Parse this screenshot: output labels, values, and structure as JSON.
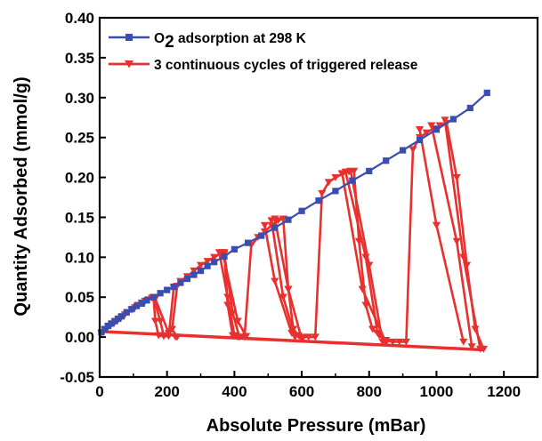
{
  "chart_data": {
    "type": "line",
    "xlabel": "Absolute Pressure (mBar)",
    "ylabel": "Quantity Adsorbed (mmol/g)",
    "xlim": [
      0,
      1300
    ],
    "ylim": [
      -0.05,
      0.4
    ],
    "x_ticks": [
      "0",
      "200",
      "400",
      "600",
      "800",
      "1000",
      "1200"
    ],
    "y_ticks": [
      "-0.05",
      "0.00",
      "0.05",
      "0.10",
      "0.15",
      "0.20",
      "0.25",
      "0.30",
      "0.35",
      "0.40"
    ],
    "grid": false,
    "legend_position": "top-left",
    "series": [
      {
        "name": "O2 adsorption at 298 K",
        "legend_main": "O",
        "legend_sub": "2",
        "legend_rest": " adsorption at 298 K",
        "color": "#3a4db0",
        "marker": "square",
        "x": [
          5,
          15,
          25,
          35,
          45,
          55,
          65,
          80,
          95,
          110,
          125,
          140,
          160,
          180,
          200,
          220,
          240,
          260,
          280,
          300,
          320,
          340,
          370,
          400,
          440,
          480,
          520,
          560,
          600,
          650,
          700,
          750,
          800,
          850,
          900,
          950,
          1000,
          1050,
          1100,
          1150
        ],
        "y": [
          0.006,
          0.01,
          0.014,
          0.017,
          0.02,
          0.023,
          0.026,
          0.031,
          0.035,
          0.039,
          0.042,
          0.046,
          0.05,
          0.055,
          0.059,
          0.063,
          0.068,
          0.073,
          0.078,
          0.083,
          0.089,
          0.094,
          0.101,
          0.11,
          0.118,
          0.127,
          0.137,
          0.147,
          0.158,
          0.171,
          0.183,
          0.196,
          0.208,
          0.221,
          0.234,
          0.247,
          0.26,
          0.273,
          0.287,
          0.306
        ]
      },
      {
        "name": "3 continuous cycles of triggered release",
        "color": "#e8302e",
        "marker": "triangle-down",
        "cycles": [
          {
            "x": [
              5,
              15,
              25,
              35,
              45,
              55,
              65,
              75,
              85,
              95,
              105,
              115,
              125,
              135,
              145,
              155,
              160,
              165,
              175,
              190,
              205,
              220,
              230,
              240,
              260,
              280,
              300,
              320,
              340,
              360,
              370,
              380,
              395,
              410,
              430,
              450,
              470,
              490,
              510,
              530,
              545,
              560,
              575,
              590,
              605,
              620,
              640,
              660,
              680,
              700,
              720,
              740,
              755,
              770,
              790,
              810,
              830,
              850,
              870,
              890,
              910,
              930,
              950,
              970,
              990,
              1010,
              1030,
              1060,
              1090,
              1115,
              1140
            ],
            "y": [
              0.005,
              0.009,
              0.013,
              0.016,
              0.019,
              0.022,
              0.025,
              0.028,
              0.031,
              0.034,
              0.037,
              0.04,
              0.043,
              0.045,
              0.047,
              0.049,
              0.05,
              0.02,
              0.002,
              0.001,
              0.001,
              0.062,
              0.064,
              0.07,
              0.076,
              0.083,
              0.09,
              0.095,
              0.1,
              0.105,
              0.106,
              0.04,
              0.002,
              0.0,
              0.0,
              0.115,
              0.125,
              0.132,
              0.14,
              0.146,
              0.148,
              0.06,
              0.01,
              0.002,
              0.0,
              0.0,
              0.0,
              0.18,
              0.194,
              0.2,
              0.204,
              0.207,
              0.208,
              0.12,
              0.04,
              0.01,
              0.002,
              -0.004,
              -0.006,
              -0.006,
              -0.006,
              0.235,
              0.25,
              0.256,
              0.261,
              0.265,
              0.268,
              0.2,
              0.09,
              0.01,
              -0.015
            ]
          }
        ],
        "release_lines": [
          {
            "x": [
              160,
              180,
              190
            ],
            "y": [
              0.05,
              0.02,
              0.002
            ]
          },
          {
            "x": [
              165,
              205,
              225
            ],
            "y": [
              0.048,
              0.005,
              0.0
            ]
          },
          {
            "x": [
              230,
              215,
              230
            ],
            "y": [
              0.064,
              0.01,
              0.0
            ]
          },
          {
            "x": [
              355,
              380,
              400
            ],
            "y": [
              0.106,
              0.05,
              0.002
            ]
          },
          {
            "x": [
              365,
              410,
              435
            ],
            "y": [
              0.106,
              0.02,
              0.001
            ]
          },
          {
            "x": [
              370,
              395,
              415
            ],
            "y": [
              0.104,
              0.03,
              0.0
            ]
          },
          {
            "x": [
              510,
              545,
              580
            ],
            "y": [
              0.146,
              0.05,
              0.0
            ]
          },
          {
            "x": [
              520,
              560,
              600
            ],
            "y": [
              0.148,
              0.06,
              -0.003
            ]
          },
          {
            "x": [
              490,
              520,
              570
            ],
            "y": [
              0.14,
              0.07,
              0.005
            ]
          },
          {
            "x": [
              730,
              790,
              825
            ],
            "y": [
              0.207,
              0.1,
              0.005
            ]
          },
          {
            "x": [
              745,
              800,
              840
            ],
            "y": [
              0.208,
              0.09,
              -0.006
            ]
          },
          {
            "x": [
              720,
              780,
              850
            ],
            "y": [
              0.205,
              0.06,
              -0.007
            ]
          },
          {
            "x": [
              950,
              1000,
              1080
            ],
            "y": [
              0.26,
              0.14,
              -0.006
            ]
          },
          {
            "x": [
              985,
              1060,
              1105
            ],
            "y": [
              0.265,
              0.12,
              -0.012
            ]
          },
          {
            "x": [
              1025,
              1080,
              1130
            ],
            "y": [
              0.272,
              0.1,
              -0.015
            ]
          }
        ],
        "baseline": {
          "x": [
            5,
            1140
          ],
          "y": [
            0.007,
            -0.016
          ]
        }
      }
    ]
  }
}
